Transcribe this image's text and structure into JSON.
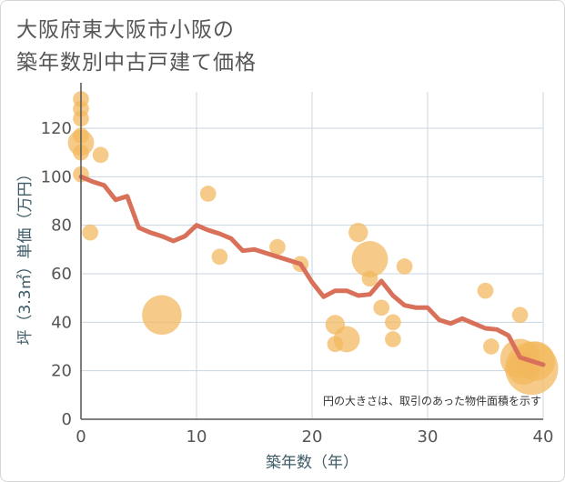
{
  "chart_data": {
    "type": "scatter",
    "title": "大阪府東大阪市小阪の\n築年数別中古戸建て価格",
    "xlabel": "築年数（年）",
    "ylabel": "坪（3.3㎡）単価（万円）",
    "xlim": [
      0,
      40
    ],
    "ylim": [
      0,
      135
    ],
    "xticks": [
      0,
      10,
      20,
      30,
      40
    ],
    "yticks": [
      0,
      20,
      40,
      60,
      80,
      100,
      120
    ],
    "grid": true,
    "note": "円の大きさは、取引のあった物件面積を示す",
    "colors": {
      "bubble": "#f2b75c",
      "line": "#d9705a",
      "grid": "#c8d6e0",
      "axis": "#555555"
    },
    "points": [
      {
        "x": 0,
        "y": 132,
        "size": 3
      },
      {
        "x": 0,
        "y": 128,
        "size": 3
      },
      {
        "x": 0,
        "y": 124,
        "size": 3
      },
      {
        "x": 0,
        "y": 117,
        "size": 3
      },
      {
        "x": 0,
        "y": 114,
        "size": 6
      },
      {
        "x": 0,
        "y": 110,
        "size": 3
      },
      {
        "x": 0,
        "y": 101,
        "size": 3
      },
      {
        "x": 1.7,
        "y": 109,
        "size": 3
      },
      {
        "x": 0.8,
        "y": 77,
        "size": 3
      },
      {
        "x": 7,
        "y": 43,
        "size": 10
      },
      {
        "x": 11,
        "y": 93,
        "size": 3
      },
      {
        "x": 12,
        "y": 67,
        "size": 3
      },
      {
        "x": 17,
        "y": 71,
        "size": 3
      },
      {
        "x": 19,
        "y": 64,
        "size": 3
      },
      {
        "x": 22,
        "y": 39,
        "size": 4
      },
      {
        "x": 22,
        "y": 31,
        "size": 3
      },
      {
        "x": 23,
        "y": 33,
        "size": 6
      },
      {
        "x": 24,
        "y": 77,
        "size": 4
      },
      {
        "x": 25,
        "y": 66,
        "size": 9
      },
      {
        "x": 25,
        "y": 58,
        "size": 3
      },
      {
        "x": 26,
        "y": 46,
        "size": 3
      },
      {
        "x": 27,
        "y": 40,
        "size": 3
      },
      {
        "x": 27,
        "y": 33,
        "size": 3
      },
      {
        "x": 28,
        "y": 63,
        "size": 3
      },
      {
        "x": 35,
        "y": 53,
        "size": 3
      },
      {
        "x": 35.5,
        "y": 30,
        "size": 3
      },
      {
        "x": 38,
        "y": 43,
        "size": 3
      },
      {
        "x": 38,
        "y": 25,
        "size": 10
      },
      {
        "x": 38.3,
        "y": 21,
        "size": 8
      },
      {
        "x": 39,
        "y": 21,
        "size": 14
      },
      {
        "x": 39.3,
        "y": 24,
        "size": 10
      }
    ],
    "trend": {
      "x": [
        0,
        1,
        2,
        3,
        4,
        5,
        6,
        7,
        8,
        9,
        10,
        11,
        12,
        13,
        14,
        15,
        16,
        17,
        18,
        19,
        20,
        21,
        22,
        23,
        24,
        25,
        26,
        27,
        28,
        29,
        30,
        31,
        32,
        33,
        34,
        35,
        36,
        37,
        38,
        39,
        40
      ],
      "y": [
        100,
        98,
        96.5,
        90.5,
        92,
        79,
        77,
        75.5,
        73.5,
        75.5,
        80,
        78,
        76.5,
        74.5,
        69.5,
        70,
        68.5,
        67,
        65.5,
        64,
        56.5,
        50.5,
        53,
        53,
        51,
        51.5,
        57,
        51,
        47,
        46,
        46,
        41,
        39.5,
        41.5,
        39.5,
        37.5,
        37,
        34.5,
        25.5,
        24,
        22.5
      ]
    }
  }
}
